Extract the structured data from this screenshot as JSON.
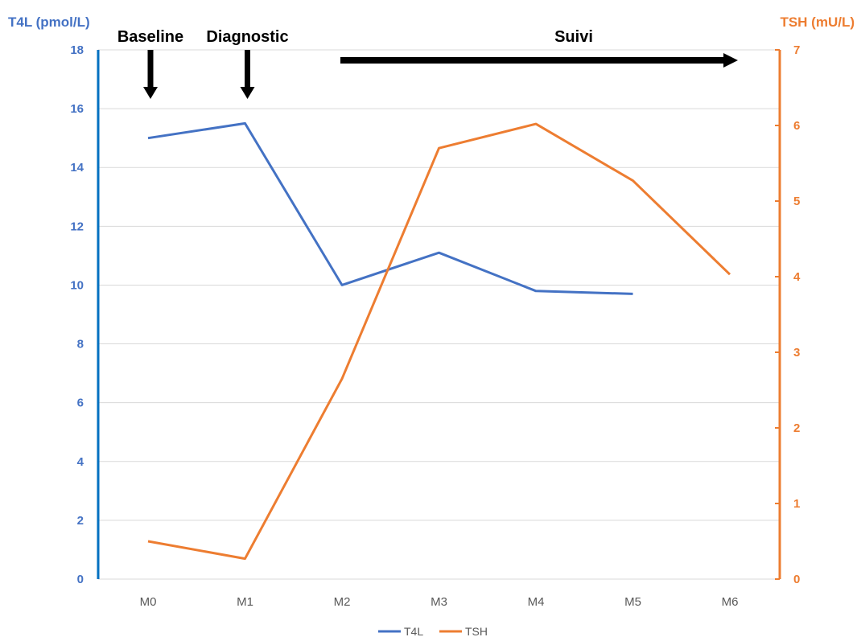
{
  "chart_data": {
    "type": "line",
    "categories": [
      "M0",
      "M1",
      "M2",
      "M3",
      "M4",
      "M5",
      "M6"
    ],
    "y_left": {
      "label": "T4L (pmol/L)",
      "range": [
        0,
        18
      ],
      "ticks": [
        "0",
        "2",
        "4",
        "6",
        "8",
        "10",
        "12",
        "14",
        "16",
        "18"
      ],
      "color": "#4472C4"
    },
    "y_right": {
      "label": "TSH (mU/L)",
      "range": [
        0,
        7
      ],
      "ticks": [
        "0",
        "1",
        "2",
        "3",
        "4",
        "5",
        "6",
        "7"
      ],
      "color": "#ED7D31"
    },
    "series": [
      {
        "name": "T4L",
        "axis": "left",
        "color": "#4472C4",
        "values": [
          15.0,
          15.5,
          10.0,
          11.1,
          9.8,
          9.7,
          null
        ]
      },
      {
        "name": "TSH",
        "axis": "right",
        "color": "#ED7D31",
        "values": [
          0.5,
          0.27,
          2.65,
          5.7,
          6.02,
          5.27,
          4.03
        ]
      }
    ],
    "annotations": [
      {
        "text": "Baseline",
        "category": "M0",
        "marker": "down-arrow"
      },
      {
        "text": "Diagnostic",
        "category": "M1",
        "marker": "down-arrow"
      },
      {
        "text": "Suivi",
        "from": "M2",
        "to": "M6",
        "marker": "right-arrow"
      }
    ],
    "grid": true,
    "legend": "bottom-center",
    "left_axis_line_color": "#0070C0"
  }
}
